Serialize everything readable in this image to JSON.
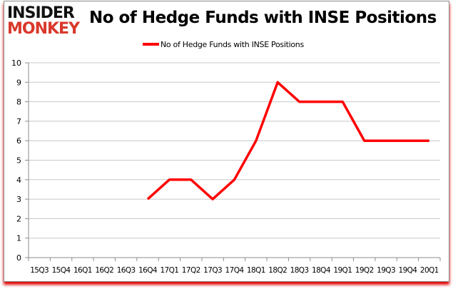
{
  "logo": {
    "line1": "INSIDER",
    "line2": "MONKEY"
  },
  "chart_data": {
    "type": "line",
    "title": "No of Hedge Funds with INSE Positions",
    "xlabel": "",
    "ylabel": "",
    "categories": [
      "15Q3",
      "15Q4",
      "16Q1",
      "16Q2",
      "16Q3",
      "16Q4",
      "17Q1",
      "17Q2",
      "17Q3",
      "17Q4",
      "18Q1",
      "18Q2",
      "18Q3",
      "18Q4",
      "19Q1",
      "19Q2",
      "19Q3",
      "19Q4",
      "20Q1"
    ],
    "series": [
      {
        "name": "No of Hedge Funds with INSE Positions",
        "color": "#ff0000",
        "values": [
          null,
          null,
          null,
          null,
          null,
          3,
          4,
          4,
          3,
          4,
          6,
          9,
          8,
          8,
          8,
          6,
          6,
          6,
          6
        ]
      }
    ],
    "ylim": [
      0,
      10
    ],
    "yticks": [
      0,
      1,
      2,
      3,
      4,
      5,
      6,
      7,
      8,
      9,
      10
    ],
    "grid": "horizontal",
    "legend": "top-center"
  }
}
